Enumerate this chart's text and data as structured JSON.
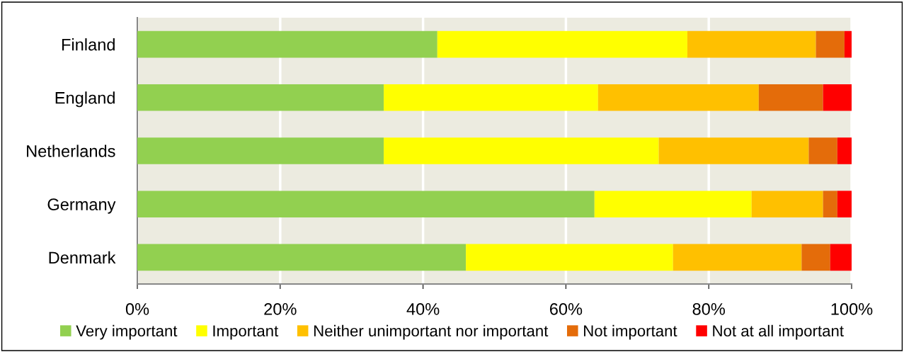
{
  "chart_data": {
    "type": "bar",
    "orientation": "horizontal",
    "stacked": true,
    "categories": [
      "Finland",
      "England",
      "Netherlands",
      "Germany",
      "Denmark"
    ],
    "series": [
      {
        "name": "Very important",
        "color": "#92d050",
        "values": [
          42,
          34.5,
          34.5,
          64,
          46
        ]
      },
      {
        "name": "Important",
        "color": "#ffff00",
        "values": [
          35,
          30,
          38.5,
          22,
          29
        ]
      },
      {
        "name": "Neither unimportant nor important",
        "color": "#ffc000",
        "values": [
          18,
          22.5,
          21,
          10,
          18
        ]
      },
      {
        "name": "Not important",
        "color": "#e46c0a",
        "values": [
          4,
          9,
          4,
          2,
          4
        ]
      },
      {
        "name": "Not at all important",
        "color": "#ff0000",
        "values": [
          1,
          4,
          2,
          2,
          3
        ]
      }
    ],
    "xlim": [
      0,
      100
    ],
    "xticks": [
      {
        "value": 0,
        "label": "0%"
      },
      {
        "value": 20,
        "label": "20%"
      },
      {
        "value": 40,
        "label": "40%"
      },
      {
        "value": 60,
        "label": "60%"
      },
      {
        "value": 80,
        "label": "80%"
      },
      {
        "value": 100,
        "label": "100%"
      }
    ],
    "grid": "x",
    "legend": "bottom"
  }
}
